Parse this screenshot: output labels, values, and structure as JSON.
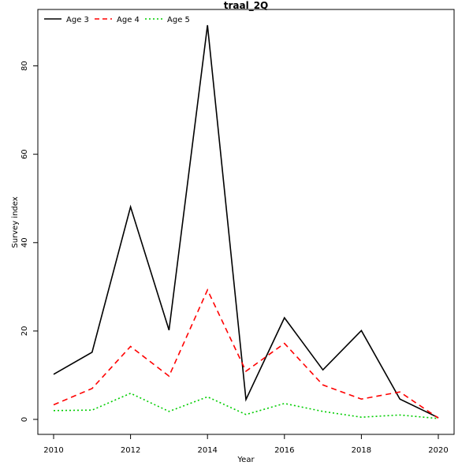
{
  "chart_data": {
    "type": "line",
    "title": "traal_2Q",
    "xlabel": "Year",
    "ylabel": "Survey index",
    "x": [
      2010,
      2011,
      2012,
      2013,
      2014,
      2015,
      2016,
      2017,
      2018,
      2019,
      2020
    ],
    "xlim": [
      2010,
      2020
    ],
    "ylim": [
      0,
      89.2
    ],
    "x_ticks": [
      "2010",
      "2012",
      "2014",
      "2016",
      "2018",
      "2020"
    ],
    "y_ticks": [
      "0",
      "20",
      "40",
      "60",
      "80"
    ],
    "grid": false,
    "legend_position": "top-left",
    "series": [
      {
        "name": "Age 3",
        "color": "#000000",
        "dash": "solid",
        "values": [
          10.2,
          15.2,
          48.1,
          20.2,
          89.2,
          4.5,
          23.0,
          11.2,
          20.1,
          4.6,
          0.4
        ]
      },
      {
        "name": "Age 4",
        "color": "#ff0000",
        "dash": "dashed",
        "values": [
          3.3,
          7.0,
          16.5,
          9.8,
          29.3,
          10.9,
          17.2,
          7.8,
          4.6,
          6.2,
          0.3
        ]
      },
      {
        "name": "Age 5",
        "color": "#00cd00",
        "dash": "dotted",
        "values": [
          2.0,
          2.1,
          5.9,
          1.8,
          5.1,
          1.1,
          3.6,
          1.8,
          0.5,
          1.0,
          0.2
        ]
      }
    ]
  }
}
